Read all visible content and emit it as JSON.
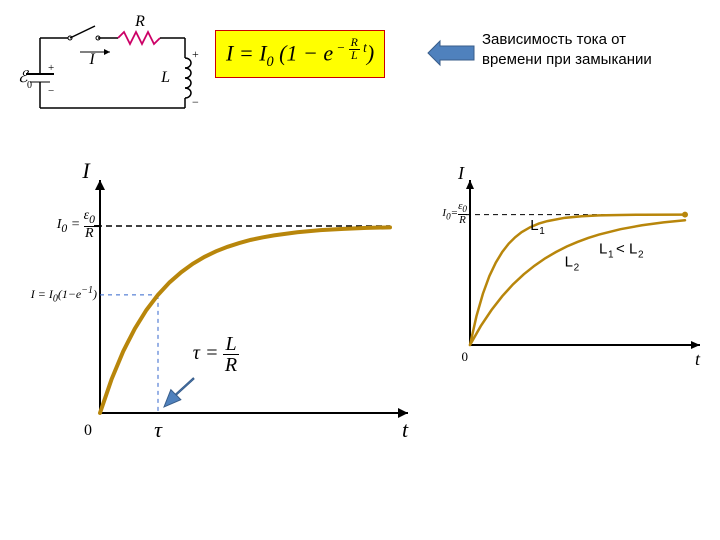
{
  "circuit": {
    "R_label": "R",
    "I_label": "I",
    "L_label": "L",
    "emf_label": "E₀",
    "stroke_color": "#000000",
    "resistor_color": "#cc0066",
    "label_fontsize": 16
  },
  "main_equation": {
    "text_prefix": "I = I",
    "sub0": "0",
    "mid": "(1 − e",
    "exp_top": "−(R/L)t",
    "suffix": ")",
    "bg": "#ffff00",
    "color": "#000000",
    "fontsize": 22,
    "border_color": "#cc0000"
  },
  "arrow_formula_to_annot": {
    "fill": "#4f81bd",
    "stroke": "#385d8a"
  },
  "annotation": {
    "line1": "Зависимость тока от",
    "line2": "времени при замыкании"
  },
  "left_chart": {
    "type": "line",
    "axis_label_y": "I",
    "axis_label_x": "t",
    "y_ref_label_html": "I<sub>0</sub> = ε<sub>0</sub> / R",
    "side_label_html": "I = I<sub>0</sub>(1 − e<sup>−1</sup>)",
    "tau_label": "τ",
    "origin_label": "0",
    "tau_formula_html": "τ = L / R",
    "curve_color": "#b8860b",
    "curve_width": 4,
    "axis_color": "#000000",
    "axis_width": 2,
    "dash_black": "6,4",
    "dash_blue": "4,4",
    "blue_dash_color": "#3366cc",
    "xlim": [
      0,
      5.0
    ],
    "ylim": [
      0,
      1.15
    ],
    "I0_level": 1.0,
    "tau_x": 1.0,
    "I_at_tau": 0.632,
    "data": [
      [
        0.0,
        0.0
      ],
      [
        0.2,
        0.181
      ],
      [
        0.4,
        0.33
      ],
      [
        0.6,
        0.451
      ],
      [
        0.8,
        0.551
      ],
      [
        1.0,
        0.632
      ],
      [
        1.2,
        0.699
      ],
      [
        1.4,
        0.753
      ],
      [
        1.6,
        0.798
      ],
      [
        1.8,
        0.835
      ],
      [
        2.0,
        0.865
      ],
      [
        2.2,
        0.889
      ],
      [
        2.4,
        0.909
      ],
      [
        2.6,
        0.926
      ],
      [
        2.8,
        0.939
      ],
      [
        3.0,
        0.95
      ],
      [
        3.4,
        0.967
      ],
      [
        3.8,
        0.978
      ],
      [
        4.2,
        0.985
      ],
      [
        4.6,
        0.99
      ],
      [
        5.0,
        0.993
      ]
    ],
    "label_fontsize": 22,
    "small_label_fontsize": 14
  },
  "right_chart": {
    "type": "line",
    "axis_label_y": "I",
    "axis_label_x": "t",
    "y_ref_html": "I<sub>0</sub> = ε<sub>0</sub> / R",
    "L1_label": "L₁",
    "L2_label": "L₂",
    "rel_label": "L₁ < L₂",
    "origin_label": "0",
    "curve_color_L1": "#b8860b",
    "curve_color_L2": "#b8860b",
    "curve_width": 2.5,
    "axis_color": "#000000",
    "axis_width": 2,
    "dash_black": "5,4",
    "xlim": [
      0,
      5.0
    ],
    "ylim": [
      0,
      1.15
    ],
    "I0_level": 1.0,
    "L1_tau": 0.6,
    "L2_tau": 1.6,
    "label_fontsize": 18,
    "data_L1": [
      [
        0.0,
        0.0
      ],
      [
        0.15,
        0.221
      ],
      [
        0.3,
        0.393
      ],
      [
        0.45,
        0.528
      ],
      [
        0.6,
        0.632
      ],
      [
        0.75,
        0.713
      ],
      [
        0.9,
        0.777
      ],
      [
        1.05,
        0.826
      ],
      [
        1.2,
        0.865
      ],
      [
        1.4,
        0.903
      ],
      [
        1.6,
        0.931
      ],
      [
        1.8,
        0.95
      ],
      [
        2.2,
        0.975
      ],
      [
        2.6,
        0.987
      ],
      [
        3.0,
        0.994
      ],
      [
        3.5,
        0.997
      ],
      [
        4.0,
        0.999
      ],
      [
        5.0,
        1.0
      ]
    ],
    "data_L2": [
      [
        0.0,
        0.0
      ],
      [
        0.25,
        0.145
      ],
      [
        0.5,
        0.268
      ],
      [
        0.75,
        0.374
      ],
      [
        1.0,
        0.465
      ],
      [
        1.25,
        0.542
      ],
      [
        1.5,
        0.608
      ],
      [
        1.75,
        0.665
      ],
      [
        2.0,
        0.713
      ],
      [
        2.25,
        0.755
      ],
      [
        2.5,
        0.79
      ],
      [
        2.75,
        0.821
      ],
      [
        3.0,
        0.847
      ],
      [
        3.5,
        0.888
      ],
      [
        4.0,
        0.918
      ],
      [
        4.5,
        0.94
      ],
      [
        5.0,
        0.956
      ]
    ]
  },
  "blue_arrow_tau": {
    "fill": "#4f81bd",
    "stroke": "#385d8a"
  }
}
